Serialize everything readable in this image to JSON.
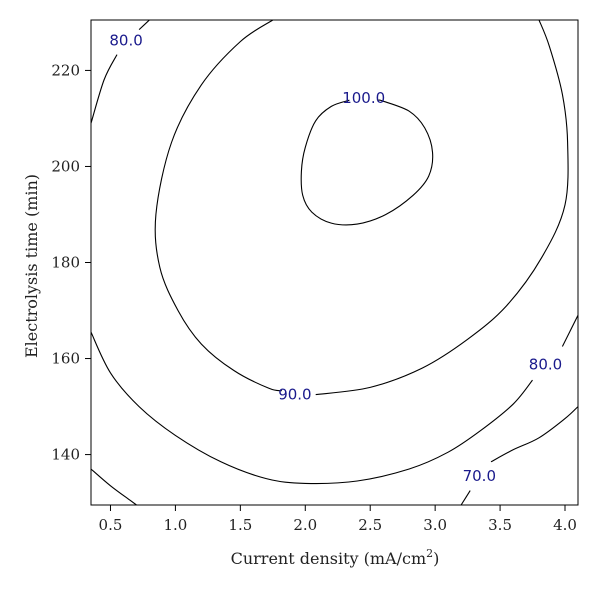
{
  "chart_data": {
    "type": "contour",
    "xlabel": "Current density (mA/cm",
    "xlabel_sup": "2",
    "xlabel_end": ")",
    "ylabel": "Electrolysis time (min)",
    "xlim": [
      0.35,
      4.1
    ],
    "ylim": [
      129.5,
      230.5
    ],
    "x_ticks": [
      "0.5",
      "1.0",
      "1.5",
      "2.0",
      "2.5",
      "3.0",
      "3.5",
      "4.0"
    ],
    "y_ticks": [
      "140",
      "160",
      "180",
      "200",
      "220"
    ],
    "label_color": "#1a1a8c",
    "line_color": "#000000",
    "contours": [
      {
        "level": 100.0,
        "label": "100.0",
        "label_at": [
          2.45,
          214.3
        ],
        "points": [
          [
            2.34,
            213.8
          ],
          [
            2.2,
            212.5
          ],
          [
            2.08,
            209.5
          ],
          [
            2.0,
            204.0
          ],
          [
            1.97,
            199.0
          ],
          [
            1.98,
            194.0
          ],
          [
            2.05,
            190.5
          ],
          [
            2.2,
            188.2
          ],
          [
            2.4,
            188.0
          ],
          [
            2.62,
            190.0
          ],
          [
            2.83,
            194.0
          ],
          [
            2.95,
            198.0
          ],
          [
            2.98,
            203.0
          ],
          [
            2.92,
            208.0
          ],
          [
            2.8,
            211.5
          ],
          [
            2.6,
            213.6
          ],
          [
            2.56,
            213.8
          ]
        ]
      },
      {
        "level": 90.0,
        "label": "90.0",
        "label_at": [
          1.92,
          152.5
        ],
        "points": [
          [
            1.75,
            230.5
          ],
          [
            1.5,
            226.0
          ],
          [
            1.2,
            217.0
          ],
          [
            0.97,
            205.0
          ],
          [
            0.85,
            190.0
          ],
          [
            0.88,
            179.0
          ],
          [
            1.02,
            170.0
          ],
          [
            1.2,
            163.0
          ],
          [
            1.45,
            157.5
          ],
          [
            1.72,
            153.8
          ],
          [
            1.82,
            153.3
          ]
        ],
        "points_b": [
          [
            2.08,
            152.5
          ],
          [
            2.5,
            154.0
          ],
          [
            2.9,
            158.0
          ],
          [
            3.25,
            164.0
          ],
          [
            3.55,
            171.0
          ],
          [
            3.82,
            181.0
          ],
          [
            4.0,
            192.0
          ],
          [
            4.02,
            205.0
          ],
          [
            3.98,
            215.0
          ],
          [
            3.88,
            225.0
          ],
          [
            3.8,
            230.5
          ]
        ]
      },
      {
        "level": 80.0,
        "label": "80.0",
        "label_at": [
          0.62,
          226.2
        ],
        "points": [
          [
            0.35,
            209.0
          ],
          [
            0.45,
            218.0
          ],
          [
            0.55,
            223.3
          ]
        ],
        "points_b": [
          [
            0.72,
            228.5
          ],
          [
            0.8,
            230.5
          ]
        ]
      },
      {
        "level": 80.0,
        "label": "80.0",
        "label_at": [
          3.85,
          158.8
        ],
        "points": [
          [
            0.35,
            165.5
          ],
          [
            0.5,
            157.0
          ],
          [
            0.72,
            150.0
          ],
          [
            1.0,
            144.0
          ],
          [
            1.35,
            138.5
          ],
          [
            1.7,
            135.0
          ],
          [
            2.0,
            134.0
          ],
          [
            2.4,
            134.5
          ],
          [
            2.8,
            137.0
          ],
          [
            3.1,
            140.5
          ],
          [
            3.35,
            145.0
          ],
          [
            3.6,
            150.5
          ],
          [
            3.75,
            155.5
          ]
        ],
        "points_b": [
          [
            3.98,
            162.5
          ],
          [
            4.1,
            169.0
          ]
        ]
      },
      {
        "level": 70.0,
        "label": "70.0",
        "label_at": [
          3.34,
          135.5
        ],
        "points": [
          [
            0.35,
            137.0
          ],
          [
            0.5,
            133.5
          ],
          [
            0.65,
            130.5
          ],
          [
            0.7,
            129.5
          ]
        ],
        "points_b": [
          [
            3.2,
            129.5
          ],
          [
            3.27,
            132.5
          ]
        ]
      },
      {
        "level": 70.0,
        "label": "",
        "label_at": null,
        "points": [
          [
            3.43,
            138.5
          ],
          [
            3.6,
            141.0
          ],
          [
            3.8,
            143.5
          ],
          [
            4.0,
            147.5
          ],
          [
            4.1,
            150.0
          ]
        ]
      }
    ]
  }
}
